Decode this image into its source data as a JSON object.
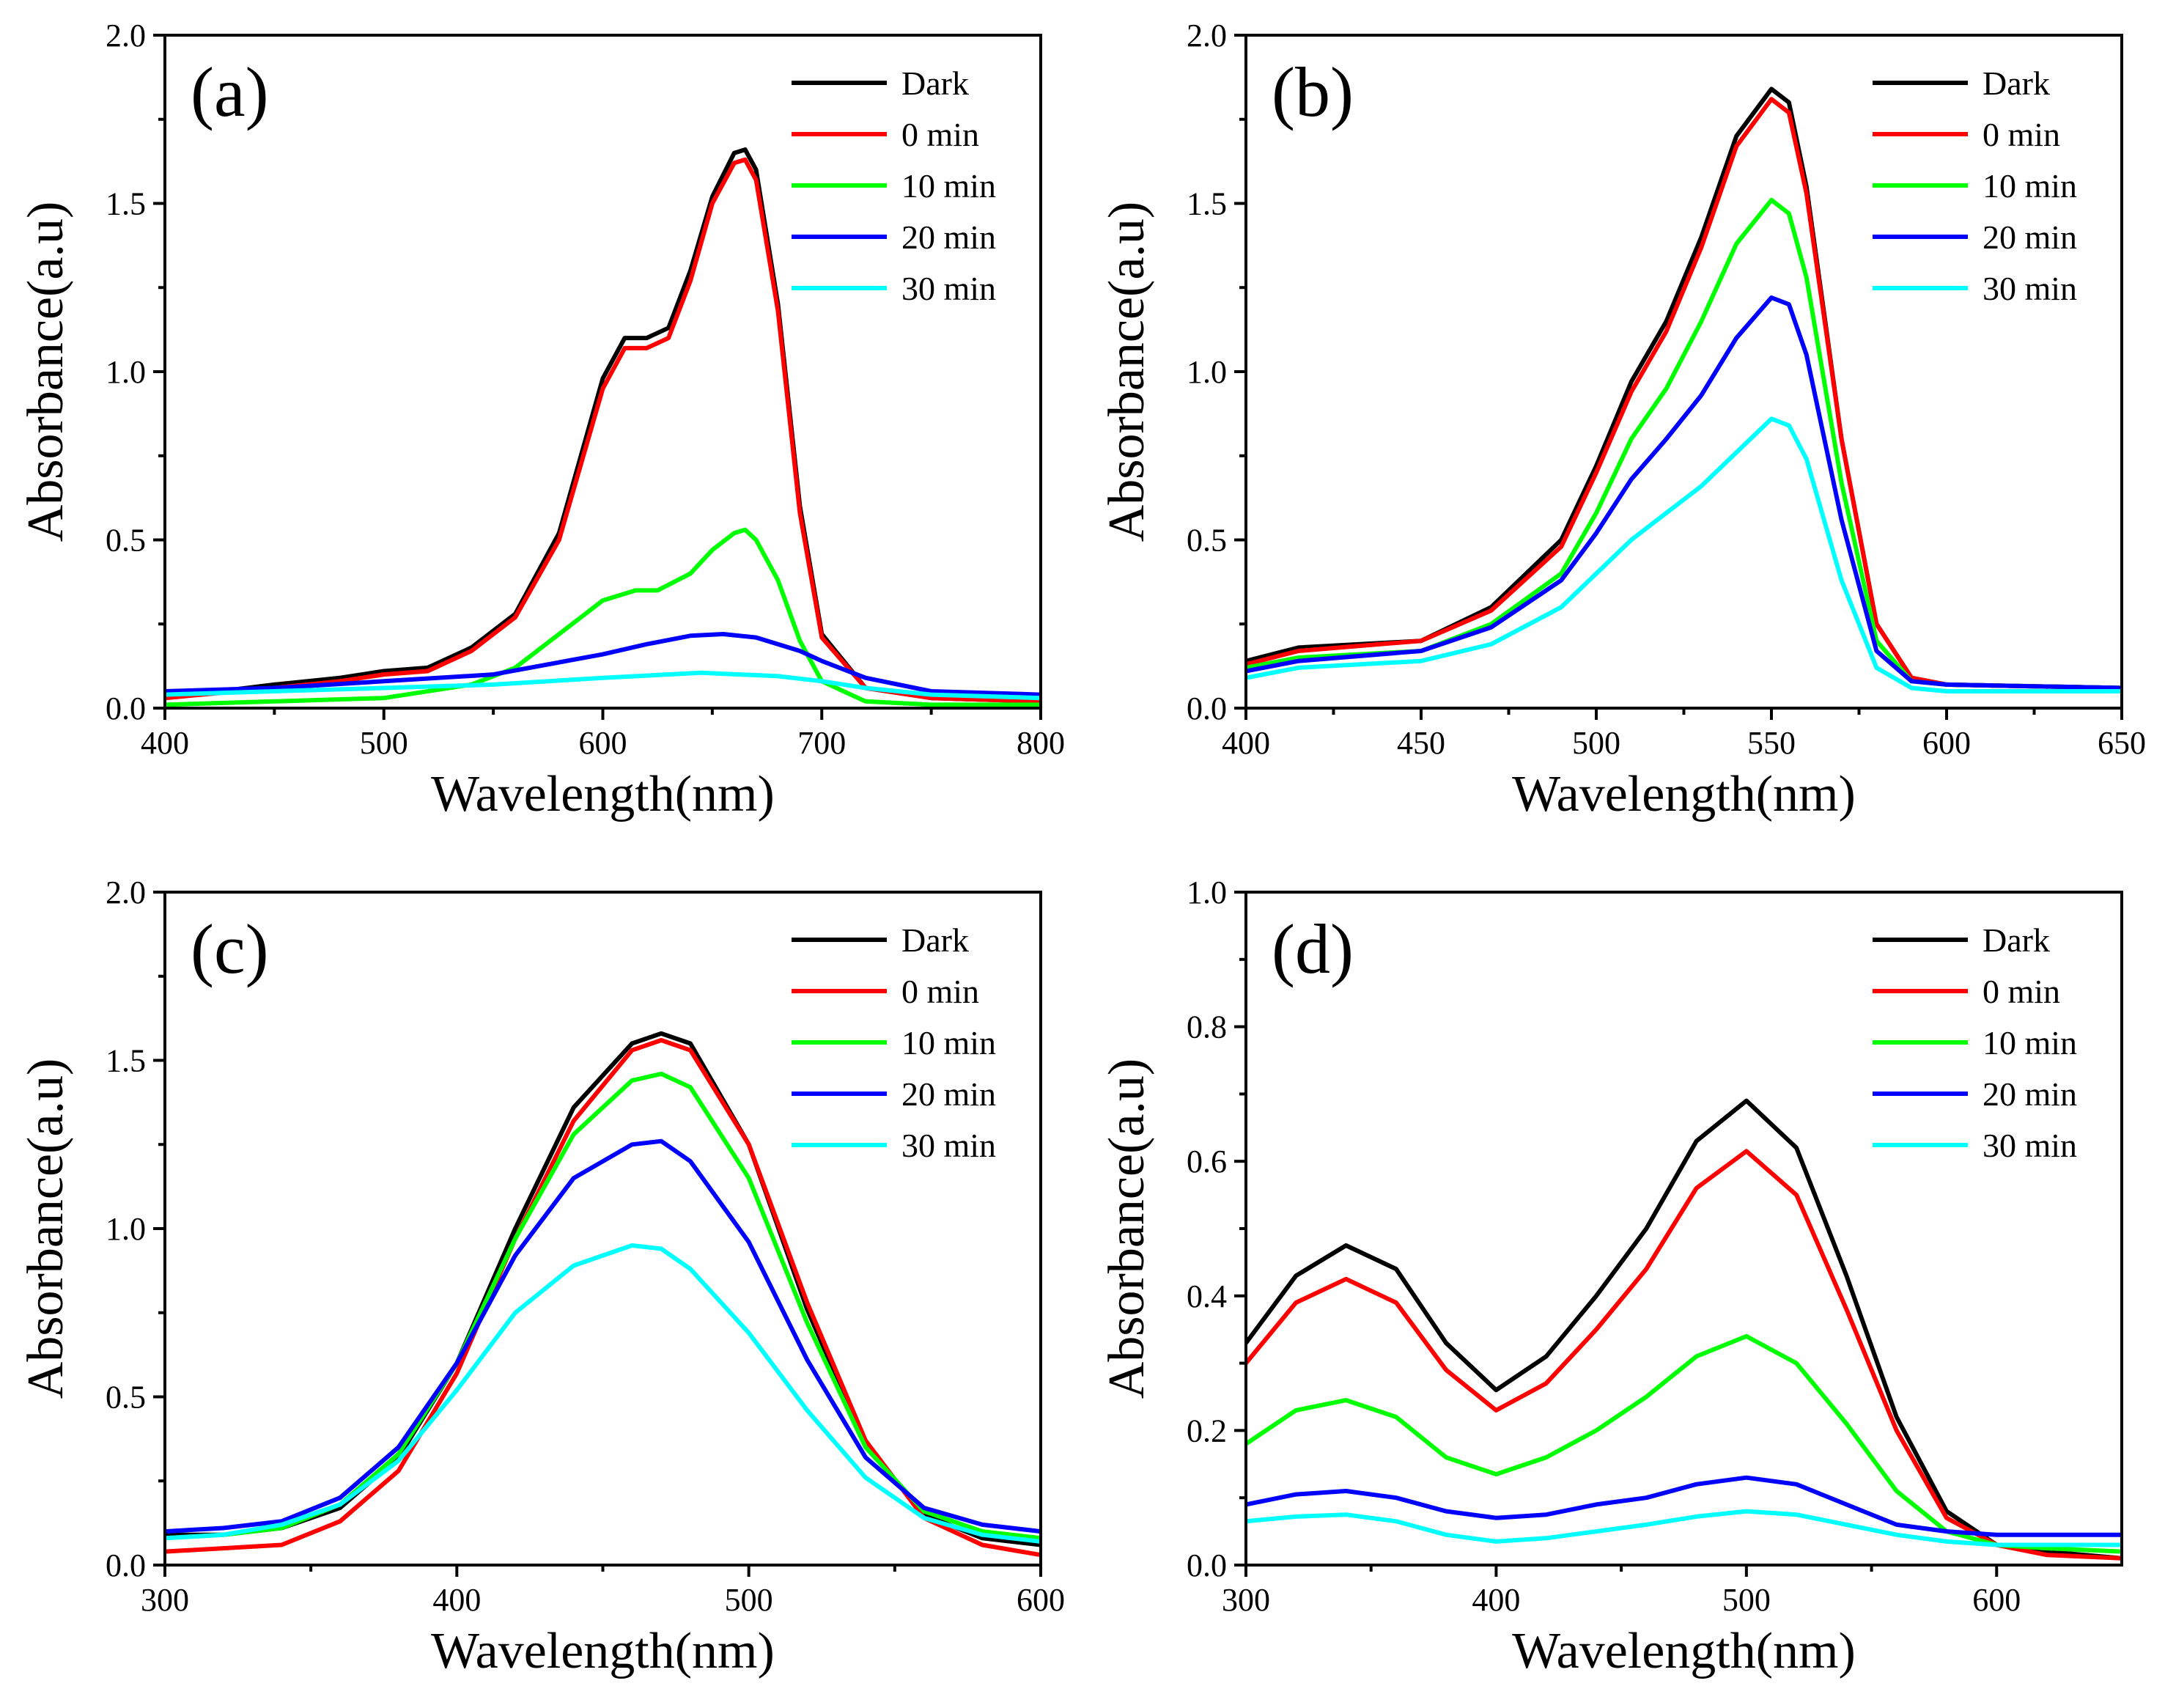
{
  "chart_data": [
    {
      "type": "line",
      "panel_label": "(a)",
      "xlabel": "Wavelength(nm)",
      "ylabel": "Absorbance(a.u)",
      "xlim": [
        400,
        800
      ],
      "ylim": [
        0,
        2.0
      ],
      "xticks": [
        400,
        500,
        600,
        700,
        800
      ],
      "yticks": [
        0.0,
        0.5,
        1.0,
        1.5,
        2.0
      ],
      "xtick_labels": [
        "400",
        "500",
        "600",
        "700",
        "800"
      ],
      "ytick_labels": [
        "0.0",
        "0.5",
        "1.0",
        "1.5",
        "2.0"
      ],
      "legend_position": "top-right",
      "series": [
        {
          "name": "Dark",
          "color": "#000000",
          "x": [
            400,
            450,
            480,
            500,
            520,
            540,
            560,
            580,
            600,
            610,
            620,
            630,
            640,
            650,
            660,
            665,
            670,
            680,
            690,
            700,
            720,
            750,
            800
          ],
          "y": [
            0.03,
            0.07,
            0.09,
            0.11,
            0.12,
            0.18,
            0.28,
            0.52,
            0.98,
            1.1,
            1.1,
            1.13,
            1.3,
            1.52,
            1.65,
            1.66,
            1.6,
            1.2,
            0.6,
            0.22,
            0.06,
            0.03,
            0.02
          ]
        },
        {
          "name": "0 min",
          "color": "#ff0000",
          "x": [
            400,
            450,
            480,
            500,
            520,
            540,
            560,
            580,
            600,
            610,
            620,
            630,
            640,
            650,
            660,
            665,
            670,
            680,
            690,
            700,
            720,
            750,
            800
          ],
          "y": [
            0.03,
            0.06,
            0.08,
            0.1,
            0.11,
            0.17,
            0.27,
            0.5,
            0.95,
            1.07,
            1.07,
            1.1,
            1.27,
            1.5,
            1.62,
            1.63,
            1.57,
            1.18,
            0.58,
            0.21,
            0.06,
            0.03,
            0.02
          ]
        },
        {
          "name": "10 min",
          "color": "#00ff00",
          "x": [
            400,
            450,
            500,
            540,
            560,
            580,
            600,
            615,
            625,
            640,
            650,
            660,
            665,
            670,
            680,
            690,
            700,
            720,
            750,
            800
          ],
          "y": [
            0.01,
            0.02,
            0.03,
            0.07,
            0.12,
            0.22,
            0.32,
            0.35,
            0.35,
            0.4,
            0.47,
            0.52,
            0.53,
            0.5,
            0.38,
            0.2,
            0.08,
            0.02,
            0.01,
            0.01
          ]
        },
        {
          "name": "20 min",
          "color": "#0000ff",
          "x": [
            400,
            450,
            500,
            550,
            600,
            620,
            640,
            655,
            670,
            690,
            700,
            720,
            750,
            800
          ],
          "y": [
            0.05,
            0.06,
            0.08,
            0.1,
            0.16,
            0.19,
            0.215,
            0.22,
            0.21,
            0.17,
            0.14,
            0.09,
            0.05,
            0.04
          ]
        },
        {
          "name": "30 min",
          "color": "#00ffff",
          "x": [
            400,
            450,
            500,
            550,
            600,
            645,
            680,
            700,
            720,
            750,
            800
          ],
          "y": [
            0.04,
            0.05,
            0.06,
            0.07,
            0.09,
            0.105,
            0.095,
            0.08,
            0.06,
            0.04,
            0.03
          ]
        }
      ]
    },
    {
      "type": "line",
      "panel_label": "(b)",
      "xlabel": "Wavelength(nm)",
      "ylabel": "Absorbance(a.u)",
      "xlim": [
        400,
        650
      ],
      "ylim": [
        0,
        2.0
      ],
      "xticks": [
        400,
        450,
        500,
        550,
        600,
        650
      ],
      "yticks": [
        0.0,
        0.5,
        1.0,
        1.5,
        2.0
      ],
      "xtick_labels": [
        "400",
        "450",
        "500",
        "550",
        "600",
        "650"
      ],
      "ytick_labels": [
        "0.0",
        "0.5",
        "1.0",
        "1.5",
        "2.0"
      ],
      "legend_position": "top-right",
      "series": [
        {
          "name": "Dark",
          "color": "#000000",
          "x": [
            400,
            415,
            450,
            470,
            490,
            500,
            510,
            520,
            530,
            540,
            550,
            555,
            560,
            570,
            580,
            590,
            600,
            650
          ],
          "y": [
            0.14,
            0.18,
            0.2,
            0.3,
            0.5,
            0.72,
            0.97,
            1.15,
            1.4,
            1.7,
            1.84,
            1.8,
            1.55,
            0.8,
            0.25,
            0.09,
            0.07,
            0.06
          ]
        },
        {
          "name": "0 min",
          "color": "#ff0000",
          "x": [
            400,
            415,
            450,
            470,
            490,
            500,
            510,
            520,
            530,
            540,
            550,
            555,
            560,
            570,
            580,
            590,
            600,
            650
          ],
          "y": [
            0.13,
            0.17,
            0.2,
            0.29,
            0.48,
            0.7,
            0.94,
            1.12,
            1.37,
            1.67,
            1.81,
            1.77,
            1.53,
            0.8,
            0.25,
            0.09,
            0.07,
            0.06
          ]
        },
        {
          "name": "10 min",
          "color": "#00ff00",
          "x": [
            400,
            415,
            450,
            470,
            490,
            500,
            510,
            520,
            530,
            540,
            550,
            555,
            560,
            570,
            580,
            590,
            600,
            650
          ],
          "y": [
            0.12,
            0.15,
            0.17,
            0.25,
            0.4,
            0.58,
            0.8,
            0.95,
            1.15,
            1.38,
            1.51,
            1.47,
            1.28,
            0.67,
            0.2,
            0.08,
            0.07,
            0.06
          ]
        },
        {
          "name": "20 min",
          "color": "#0000ff",
          "x": [
            400,
            415,
            450,
            470,
            490,
            500,
            510,
            520,
            530,
            540,
            550,
            555,
            560,
            570,
            580,
            590,
            600,
            650
          ],
          "y": [
            0.11,
            0.14,
            0.17,
            0.24,
            0.38,
            0.52,
            0.68,
            0.8,
            0.93,
            1.1,
            1.22,
            1.2,
            1.05,
            0.56,
            0.17,
            0.08,
            0.07,
            0.06
          ]
        },
        {
          "name": "30 min",
          "color": "#00ffff",
          "x": [
            400,
            415,
            450,
            470,
            490,
            500,
            510,
            520,
            530,
            540,
            550,
            555,
            560,
            570,
            580,
            590,
            600,
            650
          ],
          "y": [
            0.09,
            0.12,
            0.14,
            0.19,
            0.3,
            0.4,
            0.5,
            0.58,
            0.66,
            0.76,
            0.86,
            0.84,
            0.74,
            0.38,
            0.12,
            0.06,
            0.05,
            0.05
          ]
        }
      ]
    },
    {
      "type": "line",
      "panel_label": "(c)",
      "xlabel": "Wavelength(nm)",
      "ylabel": "Absorbance(a.u)",
      "xlim": [
        300,
        600
      ],
      "ylim": [
        0,
        2.0
      ],
      "xticks": [
        300,
        400,
        500,
        600
      ],
      "yticks": [
        0.0,
        0.5,
        1.0,
        1.5,
        2.0
      ],
      "xtick_labels": [
        "300",
        "400",
        "500",
        "600"
      ],
      "ytick_labels": [
        "0.0",
        "0.5",
        "1.0",
        "1.5",
        "2.0"
      ],
      "legend_position": "top-right",
      "series": [
        {
          "name": "Dark",
          "color": "#000000",
          "x": [
            300,
            320,
            340,
            360,
            380,
            400,
            420,
            440,
            460,
            470,
            480,
            500,
            520,
            540,
            560,
            580,
            600
          ],
          "y": [
            0.09,
            0.09,
            0.11,
            0.17,
            0.32,
            0.6,
            1.0,
            1.36,
            1.55,
            1.58,
            1.55,
            1.25,
            0.76,
            0.36,
            0.15,
            0.08,
            0.06
          ]
        },
        {
          "name": "0 min",
          "color": "#ff0000",
          "x": [
            300,
            320,
            340,
            360,
            380,
            400,
            420,
            440,
            460,
            470,
            480,
            500,
            520,
            540,
            560,
            580,
            600
          ],
          "y": [
            0.04,
            0.05,
            0.06,
            0.13,
            0.28,
            0.57,
            0.97,
            1.32,
            1.53,
            1.56,
            1.53,
            1.25,
            0.78,
            0.37,
            0.14,
            0.06,
            0.03
          ]
        },
        {
          "name": "10 min",
          "color": "#00ff00",
          "x": [
            300,
            320,
            340,
            360,
            380,
            400,
            420,
            440,
            460,
            470,
            480,
            500,
            520,
            540,
            560,
            580,
            600
          ],
          "y": [
            0.08,
            0.09,
            0.11,
            0.18,
            0.33,
            0.6,
            0.97,
            1.28,
            1.44,
            1.46,
            1.42,
            1.15,
            0.72,
            0.35,
            0.16,
            0.1,
            0.08
          ]
        },
        {
          "name": "20 min",
          "color": "#0000ff",
          "x": [
            300,
            320,
            340,
            360,
            380,
            400,
            420,
            440,
            460,
            470,
            480,
            500,
            520,
            540,
            560,
            580,
            600
          ],
          "y": [
            0.1,
            0.11,
            0.13,
            0.2,
            0.35,
            0.6,
            0.92,
            1.15,
            1.25,
            1.26,
            1.2,
            0.96,
            0.61,
            0.32,
            0.17,
            0.12,
            0.1
          ]
        },
        {
          "name": "30 min",
          "color": "#00ffff",
          "x": [
            300,
            320,
            340,
            360,
            380,
            400,
            420,
            440,
            460,
            470,
            480,
            500,
            520,
            540,
            560,
            580,
            600
          ],
          "y": [
            0.08,
            0.09,
            0.12,
            0.18,
            0.31,
            0.52,
            0.75,
            0.89,
            0.95,
            0.94,
            0.88,
            0.69,
            0.46,
            0.26,
            0.14,
            0.09,
            0.07
          ]
        }
      ]
    },
    {
      "type": "line",
      "panel_label": "(d)",
      "xlabel": "Wavelength(nm)",
      "ylabel": "Absorbance(a.u)",
      "xlim": [
        300,
        650
      ],
      "ylim": [
        0,
        1.0
      ],
      "xticks": [
        300,
        400,
        500,
        600
      ],
      "yticks": [
        0.0,
        0.2,
        0.4,
        0.6,
        0.8,
        1.0
      ],
      "xtick_labels": [
        "300",
        "400",
        "500",
        "600"
      ],
      "ytick_labels": [
        "0.0",
        "0.2",
        "0.4",
        "0.6",
        "0.8",
        "1.0"
      ],
      "legend_position": "top-right",
      "series": [
        {
          "name": "Dark",
          "color": "#000000",
          "x": [
            300,
            320,
            340,
            360,
            380,
            400,
            420,
            440,
            460,
            480,
            500,
            520,
            540,
            560,
            580,
            600,
            620,
            650
          ],
          "y": [
            0.33,
            0.43,
            0.475,
            0.44,
            0.33,
            0.26,
            0.31,
            0.4,
            0.5,
            0.63,
            0.69,
            0.62,
            0.43,
            0.22,
            0.08,
            0.03,
            0.02,
            0.01
          ]
        },
        {
          "name": "0 min",
          "color": "#ff0000",
          "x": [
            300,
            320,
            340,
            360,
            380,
            400,
            420,
            440,
            460,
            480,
            500,
            520,
            540,
            560,
            580,
            600,
            620,
            650
          ],
          "y": [
            0.3,
            0.39,
            0.425,
            0.39,
            0.29,
            0.23,
            0.27,
            0.35,
            0.44,
            0.56,
            0.615,
            0.55,
            0.38,
            0.2,
            0.07,
            0.03,
            0.015,
            0.01
          ]
        },
        {
          "name": "10 min",
          "color": "#00ff00",
          "x": [
            300,
            320,
            340,
            360,
            380,
            400,
            420,
            440,
            460,
            480,
            500,
            520,
            540,
            560,
            580,
            600,
            620,
            650
          ],
          "y": [
            0.18,
            0.23,
            0.245,
            0.22,
            0.16,
            0.135,
            0.16,
            0.2,
            0.25,
            0.31,
            0.34,
            0.3,
            0.21,
            0.11,
            0.05,
            0.03,
            0.025,
            0.02
          ]
        },
        {
          "name": "20 min",
          "color": "#0000ff",
          "x": [
            300,
            320,
            340,
            360,
            380,
            400,
            420,
            440,
            460,
            480,
            500,
            520,
            540,
            560,
            580,
            600,
            620,
            650
          ],
          "y": [
            0.09,
            0.105,
            0.11,
            0.1,
            0.08,
            0.07,
            0.075,
            0.09,
            0.1,
            0.12,
            0.13,
            0.12,
            0.09,
            0.06,
            0.05,
            0.045,
            0.045,
            0.045
          ]
        },
        {
          "name": "30 min",
          "color": "#00ffff",
          "x": [
            300,
            320,
            340,
            360,
            380,
            400,
            420,
            440,
            460,
            480,
            500,
            520,
            540,
            560,
            580,
            600,
            620,
            650
          ],
          "y": [
            0.065,
            0.072,
            0.075,
            0.065,
            0.045,
            0.035,
            0.04,
            0.05,
            0.06,
            0.072,
            0.08,
            0.075,
            0.06,
            0.045,
            0.035,
            0.03,
            0.03,
            0.03
          ]
        }
      ]
    }
  ]
}
